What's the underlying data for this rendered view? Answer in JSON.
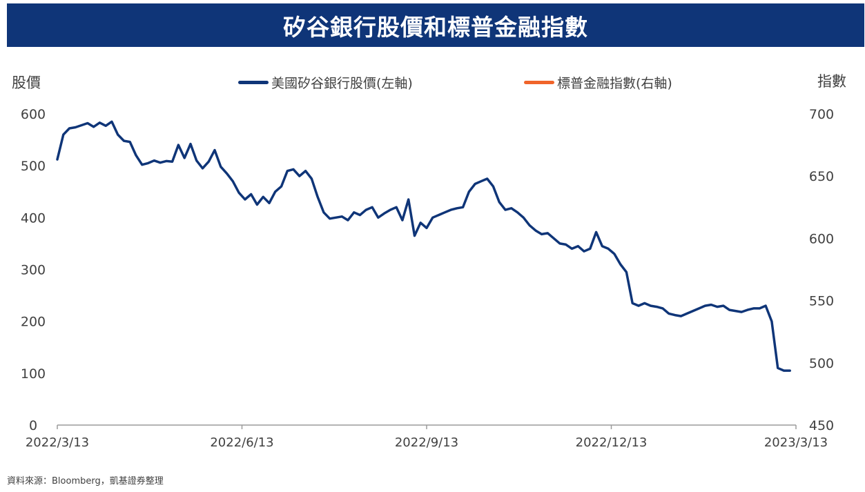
{
  "header": {
    "title": "矽谷銀行股價和標普金融指數"
  },
  "source_note": "資料來源：Bloomberg，凱基證券整理",
  "colors": {
    "title_bg": "#0f3578",
    "series_left": "#0f3578",
    "series_right": "#f0642a",
    "axis": "#9a9a9a"
  },
  "chart_data": {
    "type": "line",
    "left_axis": {
      "label": "股價",
      "ylim": [
        0,
        600
      ],
      "ticks": [
        "0",
        "100",
        "200",
        "300",
        "400",
        "500",
        "600"
      ]
    },
    "right_axis": {
      "label": "指數",
      "ylim": [
        450,
        700
      ],
      "ticks": [
        "450",
        "500",
        "550",
        "600",
        "650",
        "700"
      ]
    },
    "x_ticks": [
      "2022/3/13",
      "2022/6/13",
      "2022/9/13",
      "2022/12/13",
      "2023/3/13"
    ],
    "legend": {
      "position": "top"
    },
    "grid": false,
    "series": [
      {
        "name": "美國矽谷銀行股價(左軸)",
        "axis": "left",
        "x": [
          0,
          3,
          6,
          9,
          12,
          15,
          18,
          21,
          24,
          27,
          30,
          33,
          36,
          39,
          42,
          45,
          48,
          51,
          54,
          57,
          60,
          63,
          66,
          69,
          72,
          75,
          78,
          81,
          84,
          87,
          90,
          93,
          96,
          99,
          102,
          105,
          108,
          111,
          114,
          117,
          120,
          123,
          126,
          129,
          132,
          135,
          138,
          141,
          144,
          147,
          150,
          153,
          156,
          159,
          162,
          165,
          168,
          171,
          174,
          177,
          180,
          183,
          186,
          189,
          192,
          195,
          198,
          201,
          204,
          207,
          210,
          213,
          216,
          219,
          222,
          225,
          228,
          231,
          234,
          237,
          240,
          243,
          246,
          249,
          252,
          255,
          258,
          261,
          264,
          267,
          270,
          273,
          276,
          279,
          282,
          285,
          288,
          291,
          294,
          297,
          300,
          303,
          306,
          309,
          312,
          315,
          318,
          321,
          324,
          327,
          330,
          333,
          336,
          339,
          342,
          345,
          348,
          351,
          354,
          357,
          360,
          363
        ],
        "values": [
          512,
          560,
          572,
          574,
          578,
          582,
          575,
          583,
          577,
          585,
          560,
          548,
          546,
          520,
          502,
          505,
          510,
          506,
          509,
          508,
          540,
          515,
          542,
          510,
          495,
          508,
          530,
          498,
          485,
          470,
          448,
          435,
          445,
          425,
          440,
          428,
          450,
          460,
          490,
          493,
          480,
          490,
          475,
          440,
          410,
          398,
          400,
          402,
          395,
          410,
          405,
          415,
          420,
          400,
          408,
          415,
          420,
          395,
          435,
          365,
          390,
          380,
          400,
          405,
          410,
          415,
          418,
          420,
          450,
          465,
          470,
          475,
          460,
          430,
          415,
          418,
          410,
          400,
          385,
          375,
          368,
          370,
          360,
          350,
          348,
          340,
          345,
          335,
          340,
          372,
          345,
          340,
          330,
          310,
          295,
          235,
          230,
          235,
          230,
          228,
          225,
          215,
          212,
          210,
          215,
          220,
          225,
          230,
          232,
          228,
          230,
          222,
          220,
          218,
          222,
          225,
          225,
          230,
          200,
          110,
          105,
          105
        ],
        "values_note": "relative weekly shape; mapped to trading days"
      },
      {
        "name": "標普金融指數(右軸)",
        "axis": "right",
        "x": [],
        "values": []
      }
    ]
  }
}
